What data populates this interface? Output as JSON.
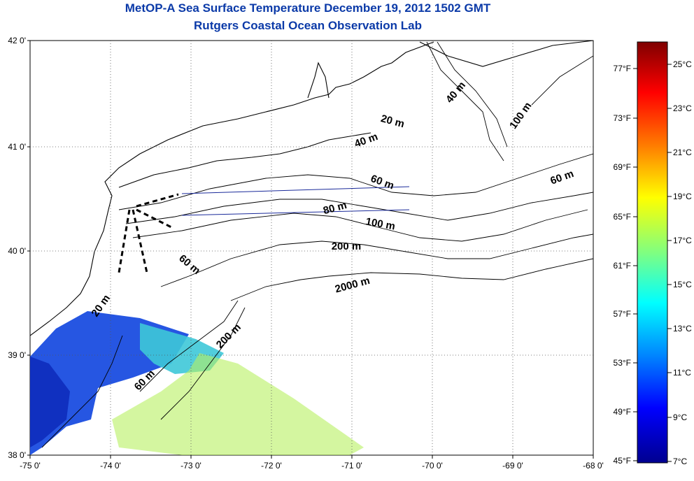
{
  "title": "MetOP-A Sea Surface Temperature December 19, 2012 1502 GMT",
  "subtitle": "Rutgers Coastal Ocean Observation Lab",
  "lon_labels": [
    "-75 0'",
    "-74 0'",
    "-73 0'",
    "-72 0'",
    "-71 0'",
    "-70 0'",
    "-69 0'",
    "-68 0'"
  ],
  "lat_labels": [
    "42 0'",
    "41 0'",
    "40 0'",
    "39 0'",
    "38 0'"
  ],
  "depth_labels": [
    "20 m",
    "40 m",
    "40 m",
    "100 m",
    "60 m",
    "60 m",
    "80 m",
    "100 m",
    "200 m",
    "60 m",
    "20 m",
    "2000 m",
    "200 m",
    "60 m"
  ],
  "colorbar": {
    "fahrenheit": [
      "77°F",
      "73°F",
      "69°F",
      "65°F",
      "61°F",
      "57°F",
      "53°F",
      "49°F",
      "45°F"
    ],
    "celsius": [
      "25°C",
      "23°C",
      "21°C",
      "19°C",
      "17°C",
      "15°C",
      "13°C",
      "11°C",
      "9°C",
      "7°C"
    ],
    "colors": [
      "#7f0000",
      "#ff0000",
      "#ff8000",
      "#ffff00",
      "#80ff80",
      "#00ffff",
      "#0080ff",
      "#0000ff",
      "#00008f"
    ]
  },
  "colors": {
    "title": "#0b3aa8",
    "grid": "#555555",
    "cold_water": "#1a4de0",
    "mid_water": "#3ec8d8",
    "warm_water": "#b8f060"
  }
}
